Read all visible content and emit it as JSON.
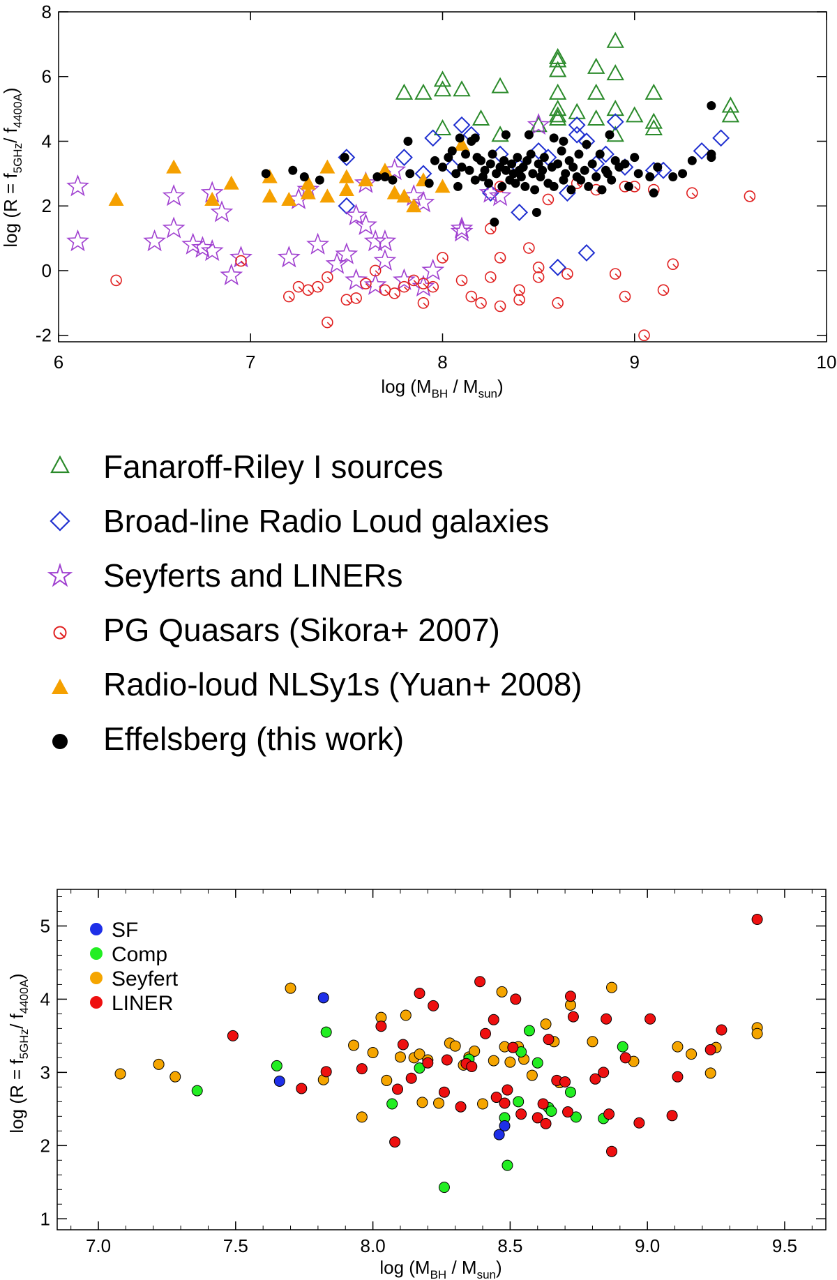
{
  "chart_data": [
    {
      "type": "scatter",
      "title": "",
      "xlabel": "log (M_BH / M_sun)",
      "ylabel": "log (R = f_5GHz / f_4400A)",
      "xlim": [
        6,
        10
      ],
      "ylim": [
        -2.2,
        8
      ],
      "x_ticks": [
        6,
        7,
        8,
        9,
        10
      ],
      "y_ticks": [
        -2,
        0,
        2,
        4,
        6,
        8
      ],
      "x_tick_labels": [
        "6",
        "7",
        "8",
        "9",
        "10"
      ],
      "y_tick_labels": [
        "-2",
        "0",
        "2",
        "4",
        "6",
        "8"
      ],
      "legend_position": "below",
      "series": [
        {
          "name": "Fanaroff-Riley I sources",
          "marker": "triangle-open",
          "color": "#2a8a2a",
          "x": [
            7.8,
            7.9,
            8.0,
            8.0,
            8.1,
            8.3,
            8.0,
            8.2,
            8.3,
            8.5,
            8.6,
            8.6,
            8.6,
            8.6,
            8.6,
            8.6,
            8.6,
            8.7,
            8.8,
            8.8,
            8.8,
            8.9,
            8.9,
            8.9,
            8.9,
            9.0,
            9.1,
            9.1,
            9.1,
            9.5,
            9.5
          ],
          "y": [
            5.5,
            5.5,
            5.9,
            5.6,
            5.6,
            5.7,
            4.4,
            4.7,
            4.2,
            4.5,
            6.6,
            6.5,
            6.2,
            5.5,
            5.0,
            4.8,
            4.7,
            4.9,
            6.3,
            5.5,
            4.7,
            7.1,
            6.1,
            5.0,
            4.2,
            4.8,
            5.5,
            4.6,
            4.4,
            5.1,
            4.8
          ]
        },
        {
          "name": "Broad-line Radio Loud galaxies",
          "marker": "diamond-open",
          "color": "#1f2fd0",
          "x": [
            7.5,
            7.5,
            7.8,
            7.9,
            7.95,
            8.05,
            8.1,
            8.15,
            8.25,
            8.3,
            8.4,
            8.4,
            8.5,
            8.55,
            8.65,
            8.7,
            8.7,
            8.75,
            8.8,
            8.85,
            8.9,
            8.6,
            8.75,
            9.1,
            9.15,
            9.35,
            9.45,
            8.95
          ],
          "y": [
            3.5,
            2.0,
            3.5,
            3.0,
            4.1,
            3.2,
            4.5,
            4.2,
            2.4,
            3.6,
            3.2,
            1.8,
            3.7,
            3.5,
            2.4,
            4.2,
            4.5,
            4.0,
            3.3,
            3.6,
            4.6,
            0.1,
            0.55,
            3.1,
            3.1,
            3.7,
            4.1,
            3.2
          ]
        },
        {
          "name": "Seyferts and LINERs",
          "marker": "star-open",
          "color": "#a040d0",
          "x": [
            6.1,
            6.1,
            6.5,
            6.6,
            6.6,
            6.7,
            6.75,
            6.8,
            6.8,
            6.85,
            6.9,
            6.95,
            7.2,
            7.25,
            7.3,
            7.35,
            7.5,
            7.55,
            7.6,
            7.6,
            7.65,
            7.7,
            7.7,
            7.75,
            7.8,
            7.85,
            7.9,
            7.95,
            8.1,
            8.1,
            8.25,
            8.3,
            7.45,
            7.55,
            7.65,
            7.9,
            8.5
          ],
          "y": [
            2.6,
            0.9,
            0.9,
            2.3,
            1.3,
            0.8,
            0.7,
            0.6,
            2.4,
            1.8,
            -0.15,
            0.4,
            0.4,
            2.2,
            2.5,
            0.8,
            0.5,
            1.7,
            1.4,
            2.7,
            0.9,
            0.3,
            0.9,
            3.1,
            -0.3,
            2.3,
            2.1,
            0.0,
            1.3,
            1.2,
            2.4,
            2.3,
            0.2,
            -0.3,
            -0.45,
            -0.5,
            4.5
          ]
        },
        {
          "name": "PG Quasars (Sikora+ 2007)",
          "marker": "q-open",
          "color": "#e02020",
          "x": [
            6.3,
            6.95,
            7.2,
            7.25,
            7.3,
            7.35,
            7.4,
            7.4,
            7.5,
            7.55,
            7.6,
            7.65,
            7.7,
            7.75,
            7.8,
            7.85,
            7.9,
            7.9,
            7.95,
            8.0,
            8.1,
            8.15,
            8.2,
            8.25,
            8.3,
            8.3,
            8.4,
            8.4,
            8.45,
            8.5,
            8.5,
            8.55,
            8.6,
            8.65,
            8.7,
            8.9,
            8.95,
            8.95,
            9.05,
            9.1,
            9.15,
            9.2,
            9.3,
            9.6,
            8.25,
            8.3,
            8.8,
            9.0
          ],
          "y": [
            -0.3,
            0.3,
            -0.8,
            -0.5,
            -0.6,
            -0.5,
            -0.2,
            -1.6,
            -0.9,
            -0.85,
            -0.4,
            0.0,
            -0.6,
            -0.7,
            -0.5,
            -0.3,
            -0.4,
            -1.0,
            -0.5,
            0.4,
            -0.3,
            -0.8,
            -1.0,
            -0.2,
            -1.1,
            2.6,
            -0.6,
            -0.9,
            0.7,
            0.1,
            -0.2,
            2.2,
            -1.0,
            -0.1,
            2.7,
            -0.1,
            -0.8,
            2.6,
            -2.0,
            2.5,
            -0.6,
            0.2,
            2.4,
            2.3,
            1.3,
            0.4,
            2.5,
            2.6
          ]
        },
        {
          "name": "Radio-loud NLSy1s (Yuan+ 2008)",
          "marker": "triangle-filled",
          "color": "#f5a000",
          "x": [
            6.3,
            6.6,
            6.8,
            6.9,
            7.1,
            7.1,
            7.2,
            7.3,
            7.3,
            7.4,
            7.4,
            7.5,
            7.5,
            7.6,
            7.7,
            7.75,
            7.8,
            7.85,
            7.9,
            8.0,
            8.1
          ],
          "y": [
            2.2,
            3.2,
            2.2,
            2.7,
            2.3,
            2.9,
            2.2,
            2.7,
            2.4,
            2.3,
            3.2,
            2.9,
            2.5,
            2.8,
            3.1,
            2.4,
            2.3,
            2.0,
            2.8,
            2.6,
            3.9
          ]
        },
        {
          "name": "Effelsberg (this work)",
          "marker": "circle-filled",
          "color": "#000000",
          "x": [
            7.08,
            7.22,
            7.28,
            7.36,
            7.49,
            7.66,
            7.7,
            7.74,
            7.82,
            7.83,
            7.93,
            7.96,
            8.0,
            8.03,
            8.05,
            8.07,
            8.08,
            8.1,
            8.12,
            8.14,
            8.15,
            8.17,
            8.18,
            8.2,
            8.21,
            8.22,
            8.24,
            8.25,
            8.26,
            8.28,
            8.3,
            8.31,
            8.32,
            8.33,
            8.35,
            8.36,
            8.37,
            8.38,
            8.39,
            8.4,
            8.41,
            8.42,
            8.43,
            8.44,
            8.46,
            8.47,
            8.48,
            8.5,
            8.51,
            8.52,
            8.53,
            8.55,
            8.57,
            8.58,
            8.6,
            8.62,
            8.63,
            8.64,
            8.66,
            8.67,
            8.68,
            8.7,
            8.71,
            8.72,
            8.74,
            8.75,
            8.76,
            8.78,
            8.8,
            8.82,
            8.83,
            8.85,
            8.86,
            8.88,
            8.9,
            8.92,
            8.95,
            8.97,
            9.0,
            9.02,
            9.08,
            9.1,
            9.12,
            9.2,
            9.25,
            9.3,
            9.4,
            9.4,
            9.4,
            8.27,
            8.49,
            8.09,
            8.17,
            8.33,
            8.45,
            8.58,
            8.63,
            8.87
          ],
          "y": [
            3.0,
            3.1,
            2.9,
            2.8,
            3.5,
            2.9,
            2.9,
            2.8,
            4.0,
            3.0,
            2.7,
            3.4,
            3.2,
            3.5,
            3.7,
            3.0,
            2.6,
            3.2,
            3.6,
            3.1,
            4.0,
            2.8,
            3.5,
            3.4,
            2.9,
            3.1,
            2.7,
            3.3,
            3.6,
            3.0,
            3.2,
            2.6,
            3.4,
            3.1,
            2.8,
            3.3,
            3.0,
            2.7,
            3.5,
            3.1,
            2.9,
            3.2,
            2.6,
            3.4,
            3.6,
            3.0,
            2.5,
            3.3,
            2.9,
            3.1,
            3.5,
            2.7,
            3.2,
            2.6,
            3.3,
            3.7,
            2.8,
            3.0,
            3.4,
            2.5,
            3.2,
            2.9,
            3.6,
            2.8,
            3.1,
            3.9,
            2.6,
            3.3,
            2.9,
            3.6,
            2.5,
            3.1,
            3.0,
            2.8,
            3.4,
            3.2,
            3.3,
            2.6,
            3.5,
            3.0,
            2.9,
            2.4,
            3.2,
            2.9,
            3.0,
            3.4,
            3.6,
            3.5,
            5.1,
            1.5,
            1.8,
            4.1,
            4.1,
            4.2,
            4.2,
            4.1,
            4.0,
            4.2
          ]
        }
      ]
    },
    {
      "type": "scatter",
      "title": "",
      "xlabel": "log (M_BH / M_sun)",
      "ylabel": "log (R = f_5GHz / f_4400A)",
      "xlim": [
        6.85,
        9.65
      ],
      "ylim": [
        0.85,
        5.5
      ],
      "x_ticks": [
        7.0,
        7.5,
        8.0,
        8.5,
        9.0,
        9.5
      ],
      "y_ticks": [
        1,
        2,
        3,
        4,
        5
      ],
      "x_tick_labels": [
        "7.0",
        "7.5",
        "8.0",
        "8.5",
        "9.0",
        "9.5"
      ],
      "y_tick_labels": [
        "1",
        "2",
        "3",
        "4",
        "5"
      ],
      "legend_position": "top-left",
      "series": [
        {
          "name": "SF",
          "color": "#1e2fe8",
          "x": [
            7.66,
            7.82,
            8.46,
            8.48
          ],
          "y": [
            2.88,
            4.02,
            2.15,
            2.27
          ]
        },
        {
          "name": "Comp",
          "color": "#22ee22",
          "x": [
            7.36,
            7.65,
            7.83,
            8.07,
            8.17,
            8.26,
            8.35,
            8.48,
            8.49,
            8.53,
            8.54,
            8.57,
            8.6,
            8.64,
            8.65,
            8.72,
            8.74,
            8.84,
            8.91
          ],
          "y": [
            2.75,
            3.09,
            3.55,
            2.57,
            3.06,
            1.43,
            3.18,
            2.38,
            1.73,
            2.6,
            3.28,
            3.57,
            3.13,
            2.52,
            2.47,
            2.73,
            2.39,
            2.37,
            3.35
          ]
        },
        {
          "name": "Seyfert",
          "color": "#f5a500",
          "x": [
            7.08,
            7.22,
            7.28,
            7.7,
            7.82,
            7.93,
            7.96,
            8.0,
            8.03,
            8.05,
            8.1,
            8.12,
            8.15,
            8.17,
            8.18,
            8.2,
            8.24,
            8.28,
            8.3,
            8.33,
            8.35,
            8.37,
            8.4,
            8.44,
            8.47,
            8.48,
            8.5,
            8.53,
            8.55,
            8.58,
            8.63,
            8.66,
            8.68,
            8.72,
            8.8,
            8.87,
            8.95,
            9.11,
            9.16,
            9.23,
            9.25,
            9.4,
            9.4
          ],
          "y": [
            2.98,
            3.11,
            2.94,
            4.15,
            2.9,
            3.37,
            2.39,
            3.27,
            3.75,
            2.89,
            3.21,
            3.78,
            3.2,
            3.25,
            2.59,
            3.17,
            2.58,
            3.4,
            3.36,
            3.1,
            3.21,
            3.29,
            2.57,
            3.16,
            4.1,
            3.35,
            3.14,
            3.35,
            3.18,
            2.96,
            3.66,
            3.42,
            2.86,
            3.92,
            3.42,
            4.16,
            3.15,
            3.35,
            3.25,
            2.99,
            3.34,
            3.61,
            3.53
          ]
        },
        {
          "name": "LINER",
          "color": "#ee1010",
          "x": [
            7.49,
            7.74,
            7.83,
            7.96,
            8.03,
            8.08,
            8.09,
            8.11,
            8.14,
            8.17,
            8.2,
            8.22,
            8.26,
            8.27,
            8.32,
            8.34,
            8.36,
            8.39,
            8.41,
            8.44,
            8.45,
            8.48,
            8.49,
            8.51,
            8.52,
            8.54,
            8.6,
            8.62,
            8.63,
            8.64,
            8.67,
            8.7,
            8.71,
            8.72,
            8.73,
            8.81,
            8.84,
            8.85,
            8.86,
            8.87,
            8.92,
            8.97,
            9.01,
            9.09,
            9.11,
            9.23,
            9.27,
            9.4
          ],
          "y": [
            3.5,
            2.78,
            3.01,
            3.05,
            3.63,
            2.05,
            2.77,
            3.38,
            2.92,
            4.08,
            3.13,
            3.91,
            2.73,
            3.17,
            2.53,
            3.12,
            3.08,
            4.24,
            3.53,
            3.72,
            2.66,
            2.58,
            2.76,
            3.34,
            4.0,
            2.43,
            2.38,
            2.57,
            2.3,
            3.45,
            2.89,
            2.87,
            2.46,
            4.04,
            3.76,
            2.91,
            3.0,
            3.73,
            2.43,
            1.92,
            3.2,
            2.31,
            3.73,
            2.41,
            2.94,
            3.31,
            3.58,
            5.09
          ]
        }
      ]
    }
  ]
}
